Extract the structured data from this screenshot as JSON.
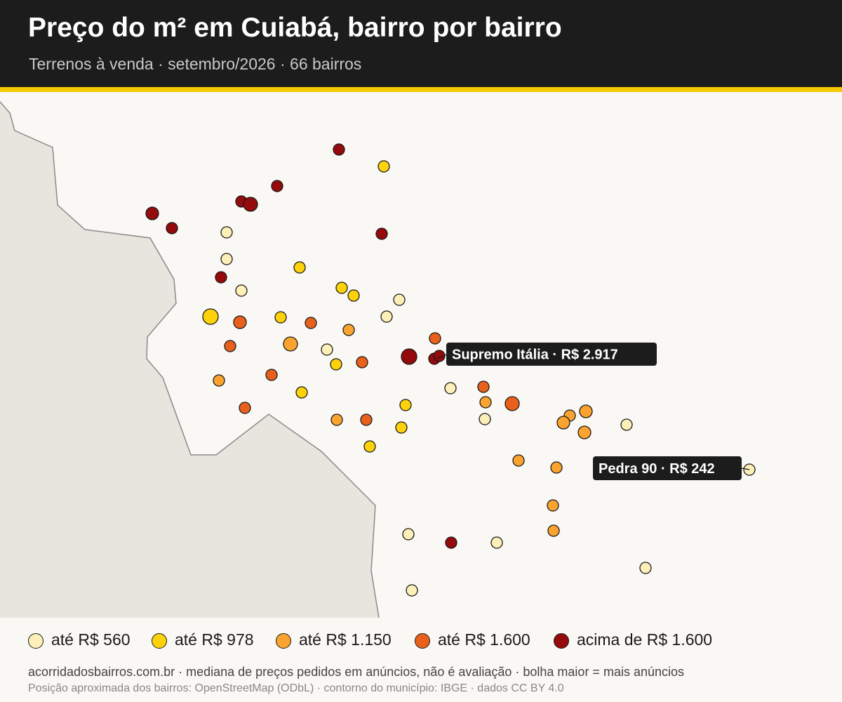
{
  "header": {
    "title": "Preço do m² em Cuiabá, bairro por bairro",
    "subtitle": "Terrenos à venda · setembro/2026 · 66 bairros"
  },
  "colors": {
    "header_bg": "#1c1c1c",
    "accent": "#f5c800",
    "map_bg": "#faf8f4",
    "outside_area": "#e8e5df",
    "boundary": "#8a8a8a",
    "label_bg": "#1c1c1c"
  },
  "legend": [
    {
      "label": "até R$ 560",
      "color": "#fcefb8"
    },
    {
      "label": "até R$ 978",
      "color": "#fdd20a"
    },
    {
      "label": "até R$ 1.150",
      "color": "#fba32f"
    },
    {
      "label": "até R$ 1.600",
      "color": "#e8601c"
    },
    {
      "label": "acima de R$ 1.600",
      "color": "#950a0c"
    }
  ],
  "callouts": [
    {
      "text": "Supremo Itália · R$ 2.917"
    },
    {
      "text": "Pedra 90 · R$ 242"
    }
  ],
  "footer": {
    "source": "acorridadosbairros.com.br · mediana de preços pedidos em anúncios, não é avaliação · bolha maior = mais anúncios",
    "credits": "Posição aproximada dos bairros: OpenStreetMap (ODbL) · contorno do município: IBGE · dados CC BY 4.0"
  }
}
